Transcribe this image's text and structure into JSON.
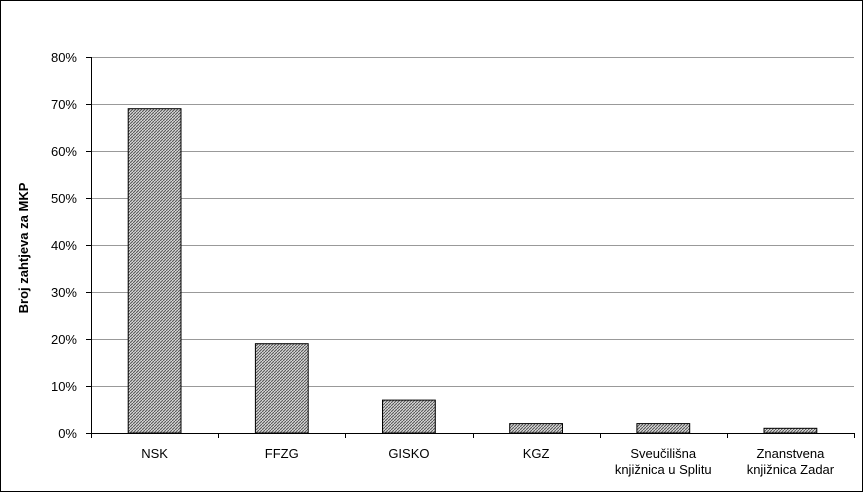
{
  "chart_data": {
    "type": "bar",
    "title": "",
    "xlabel": "",
    "ylabel": "Broj zahtjeva za MKP",
    "categories": [
      [
        "NSK"
      ],
      [
        "FFZG"
      ],
      [
        "GISKO"
      ],
      [
        "KGZ"
      ],
      [
        "Sveučilišna",
        "knjižnica u Splitu"
      ],
      [
        "Znanstvena",
        "knjižnica Zadar"
      ]
    ],
    "values": [
      0.69,
      0.19,
      0.07,
      0.02,
      0.02,
      0.01
    ],
    "ylim": [
      0,
      0.8
    ],
    "yticks": [
      0,
      0.1,
      0.2,
      0.3,
      0.4,
      0.5,
      0.6,
      0.7,
      0.8
    ],
    "ytick_labels": [
      "0%",
      "10%",
      "20%",
      "30%",
      "40%",
      "50%",
      "60%",
      "70%",
      "80%"
    ],
    "grid": true,
    "legend": "none",
    "colors": {
      "bar_stroke": "#000000",
      "bar_fill_pattern": "#888888",
      "grid": "#999999"
    }
  }
}
